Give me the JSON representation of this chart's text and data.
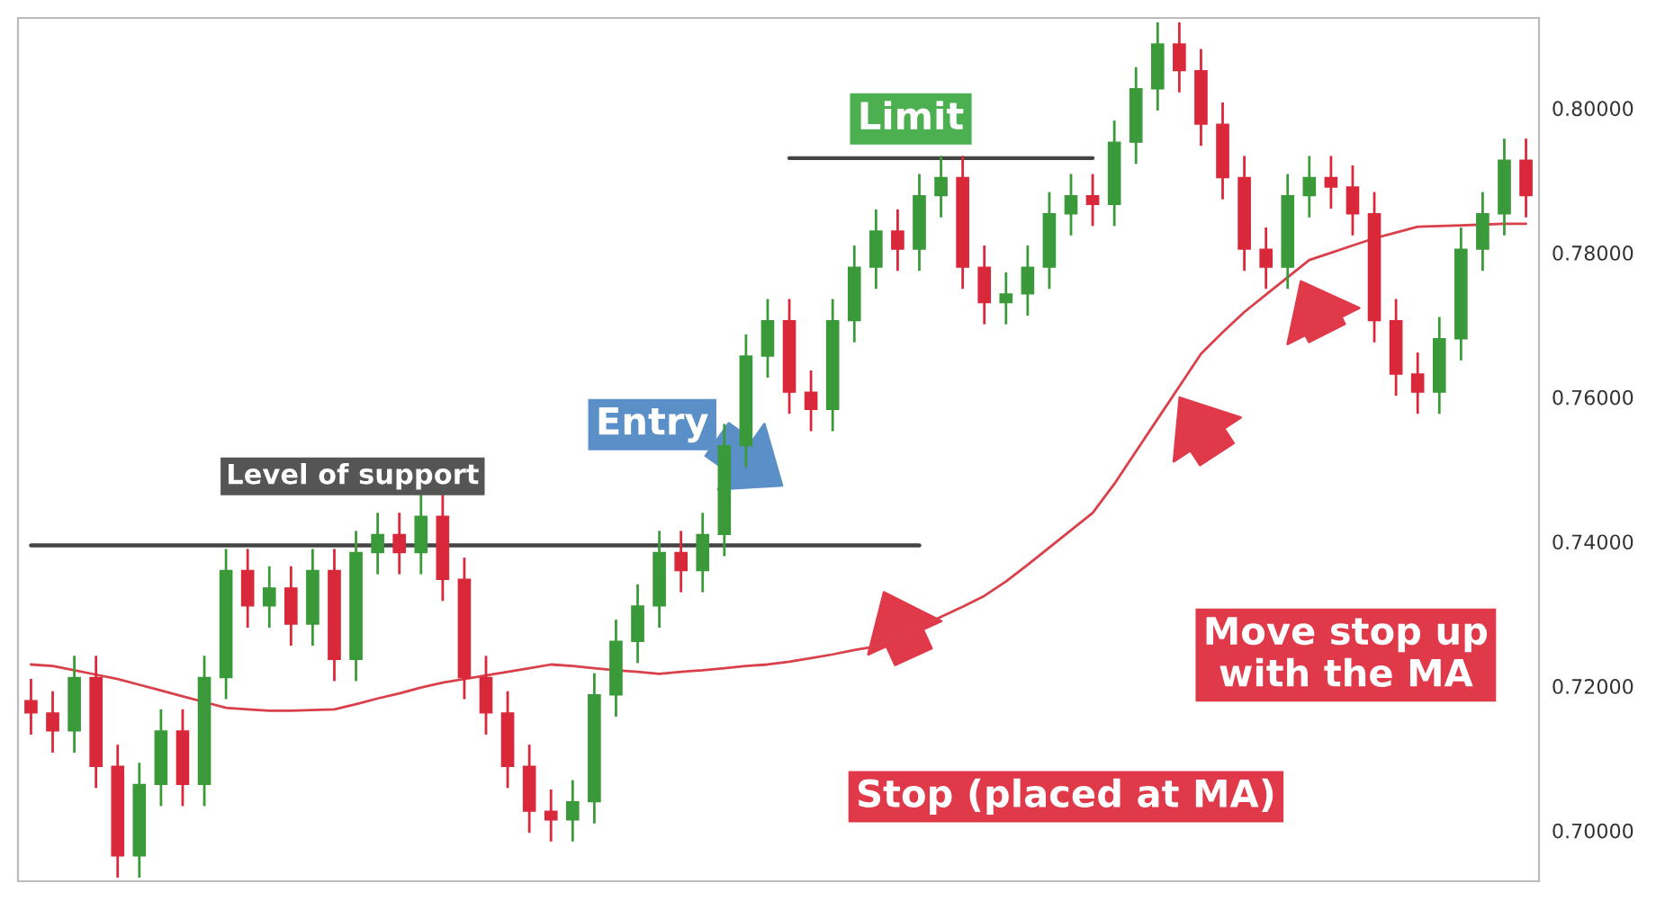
{
  "chart_data": {
    "type": "candlestick",
    "categories": [
      null,
      null,
      null,
      null,
      null,
      null,
      null,
      null,
      null,
      null,
      null,
      null,
      null,
      null,
      null,
      null,
      null,
      null,
      null,
      null,
      null,
      null,
      null,
      null,
      null,
      null,
      null,
      null,
      null,
      null,
      null,
      null,
      null,
      null,
      null,
      null,
      null,
      null,
      null,
      null,
      null,
      null,
      null,
      null,
      null,
      null,
      null,
      null,
      null,
      null,
      null,
      null,
      null,
      null,
      null,
      null,
      null,
      null,
      null,
      null,
      null,
      null,
      null,
      null,
      null,
      null,
      null,
      null,
      null,
      null
    ],
    "ohlc": [
      [
        0.718,
        0.721,
        0.7133,
        0.7163
      ],
      [
        0.7163,
        0.7193,
        0.7108,
        0.7138
      ],
      [
        0.7138,
        0.7242,
        0.7108,
        0.7212
      ],
      [
        0.7212,
        0.7242,
        0.7059,
        0.7089
      ],
      [
        0.7089,
        0.7119,
        0.6935,
        0.6965
      ],
      [
        0.6965,
        0.7094,
        0.6935,
        0.7064
      ],
      [
        0.7064,
        0.7168,
        0.7034,
        0.7138
      ],
      [
        0.7138,
        0.7168,
        0.7034,
        0.7064
      ],
      [
        0.7064,
        0.7242,
        0.7034,
        0.7212
      ],
      [
        0.7212,
        0.739,
        0.7182,
        0.736
      ],
      [
        0.736,
        0.739,
        0.7281,
        0.7311
      ],
      [
        0.7311,
        0.7366,
        0.7281,
        0.7336
      ],
      [
        0.7336,
        0.7366,
        0.7256,
        0.7286
      ],
      [
        0.7286,
        0.739,
        0.7256,
        0.736
      ],
      [
        0.736,
        0.739,
        0.7207,
        0.7237
      ],
      [
        0.7237,
        0.7415,
        0.7207,
        0.7385
      ],
      [
        0.7385,
        0.744,
        0.7355,
        0.741
      ],
      [
        0.741,
        0.744,
        0.7355,
        0.7385
      ],
      [
        0.7385,
        0.7465,
        0.7355,
        0.7435
      ],
      [
        0.7435,
        0.7465,
        0.7318,
        0.7348
      ],
      [
        0.7348,
        0.7378,
        0.7182,
        0.7212
      ],
      [
        0.7212,
        0.7242,
        0.7133,
        0.7163
      ],
      [
        0.7163,
        0.7193,
        0.7059,
        0.7089
      ],
      [
        0.7089,
        0.7119,
        0.6997,
        0.7027
      ],
      [
        0.7027,
        0.7057,
        0.6985,
        0.7015
      ],
      [
        0.7015,
        0.707,
        0.6985,
        0.704
      ],
      [
        0.704,
        0.7218,
        0.701,
        0.7188
      ],
      [
        0.7188,
        0.7292,
        0.7158,
        0.7262
      ],
      [
        0.7262,
        0.7341,
        0.7232,
        0.7311
      ],
      [
        0.7311,
        0.7415,
        0.7281,
        0.7385
      ],
      [
        0.7385,
        0.7415,
        0.733,
        0.736
      ],
      [
        0.736,
        0.744,
        0.733,
        0.741
      ],
      [
        0.741,
        0.7563,
        0.738,
        0.7533
      ],
      [
        0.7533,
        0.7687,
        0.7503,
        0.7657
      ],
      [
        0.7657,
        0.7736,
        0.7627,
        0.7706
      ],
      [
        0.7706,
        0.7736,
        0.7577,
        0.7607
      ],
      [
        0.7607,
        0.7637,
        0.7553,
        0.7583
      ],
      [
        0.7583,
        0.7736,
        0.7553,
        0.7706
      ],
      [
        0.7706,
        0.781,
        0.7676,
        0.778
      ],
      [
        0.778,
        0.786,
        0.775,
        0.783
      ],
      [
        0.783,
        0.786,
        0.7775,
        0.7805
      ],
      [
        0.7805,
        0.7909,
        0.7775,
        0.7879
      ],
      [
        0.7879,
        0.7934,
        0.7849,
        0.7904
      ],
      [
        0.7904,
        0.7934,
        0.775,
        0.778
      ],
      [
        0.778,
        0.781,
        0.7701,
        0.7731
      ],
      [
        0.7731,
        0.7773,
        0.7701,
        0.7743
      ],
      [
        0.7743,
        0.781,
        0.7713,
        0.778
      ],
      [
        0.778,
        0.7884,
        0.775,
        0.7854
      ],
      [
        0.7854,
        0.7909,
        0.7824,
        0.7879
      ],
      [
        0.7879,
        0.7909,
        0.7837,
        0.7867
      ],
      [
        0.7867,
        0.7983,
        0.7837,
        0.7953
      ],
      [
        0.7953,
        0.8057,
        0.7923,
        0.8027
      ],
      [
        0.8027,
        0.8119,
        0.7997,
        0.8089
      ],
      [
        0.8089,
        0.8119,
        0.8022,
        0.8052
      ],
      [
        0.8052,
        0.8082,
        0.7948,
        0.7978
      ],
      [
        0.7978,
        0.8008,
        0.7874,
        0.7904
      ],
      [
        0.7904,
        0.7934,
        0.7775,
        0.7805
      ],
      [
        0.7805,
        0.7835,
        0.775,
        0.778
      ],
      [
        0.778,
        0.7909,
        0.775,
        0.7879
      ],
      [
        0.7879,
        0.7934,
        0.7849,
        0.7904
      ],
      [
        0.7904,
        0.7934,
        0.7861,
        0.7891
      ],
      [
        0.7891,
        0.7921,
        0.7824,
        0.7854
      ],
      [
        0.7854,
        0.7884,
        0.7676,
        0.7706
      ],
      [
        0.7706,
        0.7736,
        0.7602,
        0.7632
      ],
      [
        0.7632,
        0.7662,
        0.7577,
        0.7607
      ],
      [
        0.7607,
        0.7711,
        0.7577,
        0.7681
      ],
      [
        0.7681,
        0.7835,
        0.7651,
        0.7805
      ],
      [
        0.7805,
        0.7884,
        0.7775,
        0.7854
      ],
      [
        0.7854,
        0.7958,
        0.7824,
        0.7928
      ],
      [
        0.7928,
        0.7958,
        0.7849,
        0.7879
      ]
    ],
    "colors": [
      "#d9283a",
      "#d9283a",
      "#3a9a3a",
      "#d9283a",
      "#d9283a",
      "#3a9a3a",
      "#3a9a3a",
      "#d9283a",
      "#3a9a3a",
      "#3a9a3a",
      "#d9283a",
      "#3a9a3a",
      "#d9283a",
      "#3a9a3a",
      "#d9283a",
      "#3a9a3a",
      "#3a9a3a",
      "#d9283a",
      "#3a9a3a",
      "#d9283a",
      "#d9283a",
      "#d9283a",
      "#d9283a",
      "#d9283a",
      "#d9283a",
      "#3a9a3a",
      "#3a9a3a",
      "#3a9a3a",
      "#3a9a3a",
      "#3a9a3a",
      "#d9283a",
      "#3a9a3a",
      "#3a9a3a",
      "#3a9a3a",
      "#3a9a3a",
      "#d9283a",
      "#d9283a",
      "#3a9a3a",
      "#3a9a3a",
      "#3a9a3a",
      "#d9283a",
      "#3a9a3a",
      "#3a9a3a",
      "#d9283a",
      "#d9283a",
      "#3a9a3a",
      "#3a9a3a",
      "#3a9a3a",
      "#3a9a3a",
      "#d9283a",
      "#3a9a3a",
      "#3a9a3a",
      "#3a9a3a",
      "#d9283a",
      "#d9283a",
      "#d9283a",
      "#d9283a",
      "#d9283a",
      "#3a9a3a",
      "#3a9a3a",
      "#d9283a",
      "#d9283a",
      "#d9283a",
      "#d9283a",
      "#d9283a",
      "#3a9a3a",
      "#3a9a3a",
      "#3a9a3a",
      "#3a9a3a",
      "#d9283a"
    ],
    "series": [
      {
        "type": "line",
        "color": "#d9404a",
        "values": [
          0.723,
          0.7228,
          0.7222,
          0.7216,
          0.721,
          0.7202,
          0.7194,
          0.7186,
          0.7178,
          0.717,
          0.7168,
          0.7166,
          0.7166,
          0.7167,
          0.7168,
          0.7175,
          0.7183,
          0.719,
          0.7198,
          0.7205,
          0.721,
          0.7215,
          0.722,
          0.7225,
          0.723,
          0.7228,
          0.7225,
          0.7222,
          0.722,
          0.7217,
          0.722,
          0.7222,
          0.7225,
          0.7228,
          0.723,
          0.7234,
          0.7239,
          0.7244,
          0.725,
          0.7255,
          0.7268,
          0.7282,
          0.7296,
          0.731,
          0.7325,
          0.7345,
          0.7368,
          0.7392,
          0.7416,
          0.744,
          0.748,
          0.7525,
          0.757,
          0.7615,
          0.766,
          0.769,
          0.7718,
          0.7742,
          0.7766,
          0.779,
          0.78,
          0.781,
          0.782,
          0.7828,
          0.7836,
          0.7837,
          0.7838,
          0.7839,
          0.784,
          0.784
        ]
      },
      {
        "type": "line",
        "color": "#444444",
        "values": [
          0.7395,
          0.7395,
          0.7395,
          0.7395,
          0.7395,
          0.7395,
          0.7395,
          0.7395,
          0.7395,
          0.7395,
          0.7395,
          0.7395,
          0.7395,
          0.7395,
          0.7395,
          0.7395,
          0.7395,
          0.7395,
          0.7395,
          0.7395,
          0.7395,
          0.7395,
          0.7395,
          0.7395,
          0.7395,
          0.7395,
          0.7395,
          0.7395,
          0.7395,
          0.7395,
          0.7395,
          0.7395,
          0.7395,
          0.7395,
          0.7395,
          0.7395,
          0.7395,
          0.7395,
          0.7395,
          0.7395,
          0.7395,
          0.7395,
          null,
          null,
          null,
          null,
          null,
          null,
          null,
          null,
          null,
          null,
          null,
          null,
          null,
          null,
          null,
          null,
          null,
          null,
          null,
          null,
          null,
          null,
          null,
          null,
          null,
          null,
          null,
          null
        ]
      },
      {
        "type": "line",
        "color": "#444444",
        "values": [
          null,
          null,
          null,
          null,
          null,
          null,
          null,
          null,
          null,
          null,
          null,
          null,
          null,
          null,
          null,
          null,
          null,
          null,
          null,
          null,
          null,
          null,
          null,
          null,
          null,
          null,
          null,
          null,
          null,
          null,
          null,
          null,
          null,
          null,
          null,
          0.7931,
          0.7931,
          0.7931,
          0.7931,
          0.7931,
          0.7931,
          0.7931,
          0.7931,
          0.7931,
          0.7931,
          0.7931,
          0.7931,
          0.7931,
          0.7931,
          0.7931,
          null,
          null,
          null,
          null,
          null,
          null,
          null,
          null,
          null,
          null,
          null,
          null,
          null,
          null,
          null,
          null,
          null,
          null,
          null,
          null
        ]
      }
    ],
    "ylim": [
      0.693,
      0.8125
    ],
    "yticks": [
      {
        "value": 0.7,
        "label": "0.70000"
      },
      {
        "value": 0.72,
        "label": "0.72000"
      },
      {
        "value": 0.74,
        "label": "0.74000"
      },
      {
        "value": 0.76,
        "label": "0.76000"
      },
      {
        "value": 0.78,
        "label": "0.78000"
      },
      {
        "value": 0.8,
        "label": "0.80000"
      }
    ],
    "tick_labels": "y",
    "grid": false,
    "legend": false,
    "annotations": [
      "Level of support",
      "Limit",
      "Entry",
      "Move stop up\nwith the MA",
      "Stop (placed at MA)"
    ]
  }
}
